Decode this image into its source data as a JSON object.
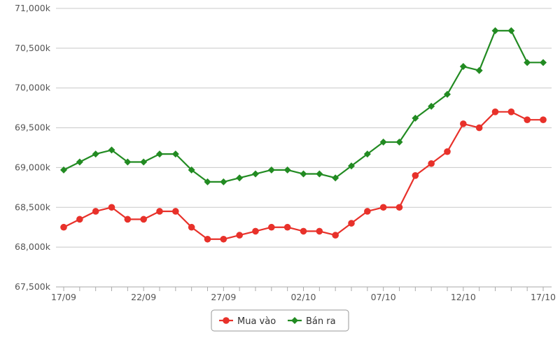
{
  "chart_data": {
    "type": "line",
    "title": "",
    "xlabel": "",
    "ylabel": "",
    "x": [
      "17/09",
      "18/09",
      "19/09",
      "20/09",
      "21/09",
      "22/09",
      "23/09",
      "24/09",
      "25/09",
      "26/09",
      "27/09",
      "28/09",
      "29/09",
      "30/09",
      "01/10",
      "02/10",
      "03/10",
      "04/10",
      "05/10",
      "06/10",
      "07/10",
      "08/10",
      "09/10",
      "10/10",
      "11/10",
      "12/10",
      "13/10",
      "14/10",
      "15/10",
      "16/10",
      "17/10"
    ],
    "x_tick_labels": [
      "17/09",
      "22/09",
      "27/09",
      "02/10",
      "07/10",
      "12/10",
      "17/10"
    ],
    "y_tick_labels": [
      "67,500k",
      "68,000k",
      "68,500k",
      "69,000k",
      "69,500k",
      "70,000k",
      "70,500k",
      "71,000k"
    ],
    "ylim": [
      67500,
      71000
    ],
    "grid": true,
    "legend_position": "bottom-center",
    "series": [
      {
        "name": "Mua vào",
        "color": "#e8312a",
        "marker": "circle",
        "values": [
          68250,
          68350,
          68450,
          68500,
          68350,
          68350,
          68450,
          68450,
          68250,
          68100,
          68100,
          68150,
          68200,
          68250,
          68250,
          68200,
          68200,
          68150,
          68300,
          68450,
          68500,
          68500,
          68900,
          69050,
          69200,
          69550,
          69500,
          69700,
          69700,
          69600,
          69600
        ]
      },
      {
        "name": "Bán ra",
        "color": "#228b22",
        "marker": "diamond",
        "values": [
          68970,
          69070,
          69170,
          69220,
          69070,
          69070,
          69170,
          69170,
          68970,
          68820,
          68820,
          68870,
          68920,
          68970,
          68970,
          68920,
          68920,
          68870,
          69020,
          69170,
          69320,
          69320,
          69620,
          69770,
          69920,
          70270,
          70220,
          70720,
          70720,
          70320,
          70320
        ]
      }
    ]
  }
}
